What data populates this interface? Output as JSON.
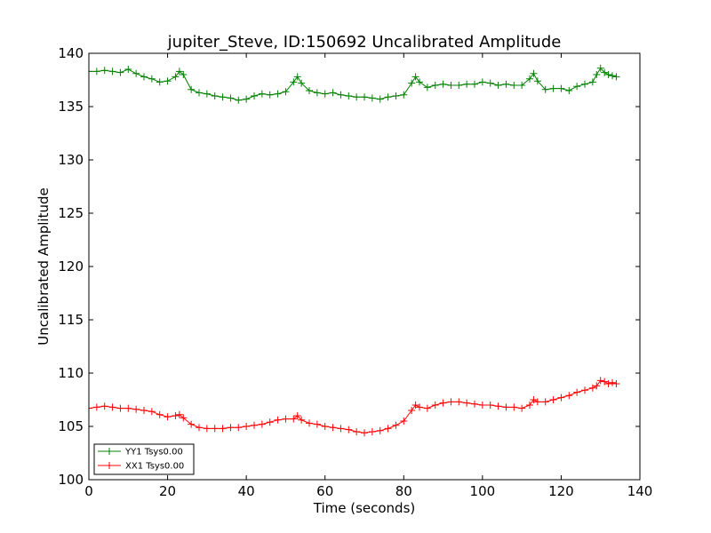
{
  "chart_data": {
    "type": "line",
    "title": "jupiter_Steve, ID:150692 Uncalibrated Amplitude",
    "xlabel": "Time (seconds)",
    "ylabel": "Uncalibrated Amplitude",
    "xlim": [
      0,
      140
    ],
    "ylim": [
      100,
      140
    ],
    "x_ticks": [
      0,
      20,
      40,
      60,
      80,
      100,
      120,
      140
    ],
    "y_ticks": [
      100,
      105,
      110,
      115,
      120,
      125,
      130,
      135,
      140
    ],
    "grid": false,
    "legend_position": "lower-left",
    "series": [
      {
        "name": "YY1 Tsys0.00",
        "color": "#008000",
        "marker": "+",
        "x": [
          0,
          2,
          4,
          6,
          8,
          10,
          12,
          14,
          16,
          18,
          20,
          22,
          23,
          24,
          26,
          28,
          30,
          32,
          34,
          36,
          38,
          40,
          42,
          44,
          46,
          48,
          50,
          52,
          53,
          54,
          56,
          58,
          60,
          62,
          64,
          66,
          68,
          70,
          72,
          74,
          76,
          78,
          80,
          82,
          83,
          84,
          86,
          88,
          90,
          92,
          94,
          96,
          98,
          100,
          102,
          104,
          106,
          108,
          110,
          112,
          113,
          114,
          116,
          118,
          120,
          122,
          124,
          126,
          128,
          129,
          130,
          131,
          132,
          133,
          134
        ],
        "values": [
          138.3,
          138.3,
          138.4,
          138.3,
          138.2,
          138.5,
          138.1,
          137.8,
          137.6,
          137.3,
          137.4,
          137.8,
          138.3,
          138.0,
          136.6,
          136.3,
          136.2,
          136.0,
          135.9,
          135.8,
          135.6,
          135.7,
          136.0,
          136.2,
          136.1,
          136.2,
          136.4,
          137.3,
          137.8,
          137.2,
          136.5,
          136.3,
          136.2,
          136.3,
          136.1,
          136.0,
          135.9,
          135.9,
          135.8,
          135.7,
          135.9,
          136.0,
          136.1,
          137.2,
          137.8,
          137.3,
          136.8,
          137.0,
          137.1,
          137.0,
          137.0,
          137.1,
          137.1,
          137.3,
          137.2,
          137.0,
          137.1,
          137.0,
          137.0,
          137.6,
          138.1,
          137.4,
          136.6,
          136.7,
          136.7,
          136.5,
          136.9,
          137.1,
          137.3,
          138.0,
          138.6,
          138.2,
          138.0,
          137.9,
          137.8
        ]
      },
      {
        "name": "XX1 Tsys0.00",
        "color": "#ff0000",
        "marker": "+",
        "x": [
          0,
          2,
          4,
          6,
          8,
          10,
          12,
          14,
          16,
          18,
          20,
          22,
          23,
          24,
          26,
          28,
          30,
          32,
          34,
          36,
          38,
          40,
          42,
          44,
          46,
          48,
          50,
          52,
          53,
          54,
          56,
          58,
          60,
          62,
          64,
          66,
          68,
          70,
          72,
          74,
          76,
          78,
          80,
          82,
          83,
          84,
          86,
          88,
          90,
          92,
          94,
          96,
          98,
          100,
          102,
          104,
          106,
          108,
          110,
          112,
          113,
          114,
          116,
          118,
          120,
          122,
          124,
          126,
          128,
          129,
          130,
          131,
          132,
          133,
          134
        ],
        "values": [
          106.7,
          106.8,
          106.9,
          106.8,
          106.7,
          106.7,
          106.6,
          106.5,
          106.4,
          106.1,
          105.9,
          106.0,
          106.1,
          105.8,
          105.2,
          104.9,
          104.8,
          104.8,
          104.8,
          104.9,
          104.9,
          105.0,
          105.1,
          105.2,
          105.4,
          105.6,
          105.7,
          105.7,
          106.0,
          105.6,
          105.3,
          105.2,
          105.0,
          104.9,
          104.8,
          104.7,
          104.5,
          104.4,
          104.5,
          104.6,
          104.8,
          105.1,
          105.5,
          106.5,
          107.0,
          106.8,
          106.7,
          107.0,
          107.2,
          107.3,
          107.3,
          107.2,
          107.1,
          107.0,
          107.0,
          106.9,
          106.8,
          106.8,
          106.7,
          107.0,
          107.5,
          107.3,
          107.3,
          107.5,
          107.7,
          107.9,
          108.2,
          108.4,
          108.6,
          108.8,
          109.3,
          109.2,
          109.0,
          109.1,
          109.0
        ]
      }
    ]
  }
}
